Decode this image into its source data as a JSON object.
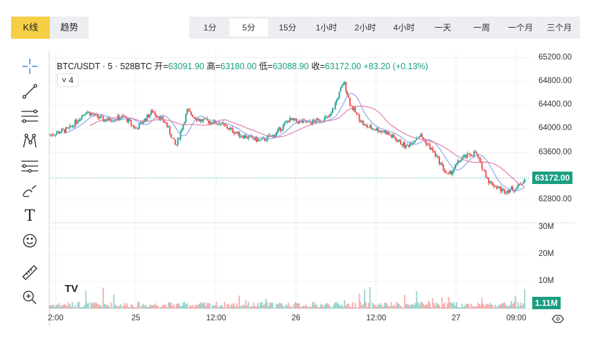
{
  "view_tabs": [
    {
      "label": "K线",
      "active": true
    },
    {
      "label": "趋势",
      "active": false
    }
  ],
  "periods": [
    {
      "label": "1分"
    },
    {
      "label": "5分",
      "active": true
    },
    {
      "label": "15分"
    },
    {
      "label": "1小时"
    },
    {
      "label": "2小时"
    },
    {
      "label": "4小时"
    },
    {
      "label": "一天"
    },
    {
      "label": "一周"
    },
    {
      "label": "一个月"
    },
    {
      "label": "三个月"
    }
  ],
  "legend": {
    "symbol": "BTC/USDT · 5 · 528BTC",
    "open_label": "开=",
    "open": "63091.90",
    "high_label": "高=",
    "high": "63180.00",
    "low_label": "低=",
    "low": "63088.90",
    "close_label": "收=",
    "close": "63172.00",
    "change": "+83.20 (+0.13%)"
  },
  "indicators_collapse": "˅ 4",
  "tools": [
    "crosshair-icon",
    "trend-line-icon",
    "parallel-channel-icon",
    "pattern-icon",
    "fib-icon",
    "brush-icon",
    "text-icon",
    "emoji-icon",
    "ruler-icon",
    "zoom-in-icon"
  ],
  "text_tool": "T",
  "logo": "TV",
  "colors": {
    "up": "#26a69a",
    "down": "#ef5350",
    "ma1": "#8fa3e8",
    "ma2": "#e07fa8",
    "accent": "#f5cf45"
  },
  "chart_data": {
    "type": "candlestick",
    "price_axis": {
      "ticks": [
        "65200.00",
        "64800.00",
        "64400.00",
        "64000.00",
        "63600.00",
        "62800.00"
      ],
      "range": [
        62500,
        65300
      ]
    },
    "last_price": "63172.00",
    "last_volume": "1.11M",
    "volume_axis": {
      "ticks": [
        "30M",
        "20M",
        "10M"
      ],
      "max": 30
    },
    "time_axis": [
      {
        "label": "2:00",
        "h": -12
      },
      {
        "label": "25",
        "h": 0
      },
      {
        "label": "12:00",
        "h": 12
      },
      {
        "label": "26",
        "h": 24
      },
      {
        "label": "12:00",
        "h": 36
      },
      {
        "label": "27",
        "h": 48
      },
      {
        "label": "09:00",
        "h": 57
      }
    ],
    "price_path_hours": [
      [
        -12.9,
        63900
      ],
      [
        -10,
        64000
      ],
      [
        -7.5,
        64300
      ],
      [
        -4.8,
        64150
      ],
      [
        -1.7,
        64200
      ],
      [
        0,
        64000
      ],
      [
        2.5,
        64300
      ],
      [
        4.5,
        64100
      ],
      [
        6,
        63700
      ],
      [
        7.7,
        64300
      ],
      [
        9.5,
        64150
      ],
      [
        12.5,
        64100
      ],
      [
        15.6,
        63900
      ],
      [
        18.7,
        63800
      ],
      [
        20.8,
        63900
      ],
      [
        22.9,
        64150
      ],
      [
        26,
        64100
      ],
      [
        29.1,
        64200
      ],
      [
        31.2,
        64800
      ],
      [
        32.2,
        64400
      ],
      [
        34.3,
        64050
      ],
      [
        37.4,
        63950
      ],
      [
        40.5,
        63700
      ],
      [
        42.6,
        63900
      ],
      [
        44.7,
        63600
      ],
      [
        46.8,
        63200
      ],
      [
        48.8,
        63500
      ],
      [
        50.9,
        63600
      ],
      [
        53,
        63100
      ],
      [
        55.1,
        62950
      ],
      [
        57.1,
        63000
      ],
      [
        58.4,
        63172
      ]
    ]
  }
}
